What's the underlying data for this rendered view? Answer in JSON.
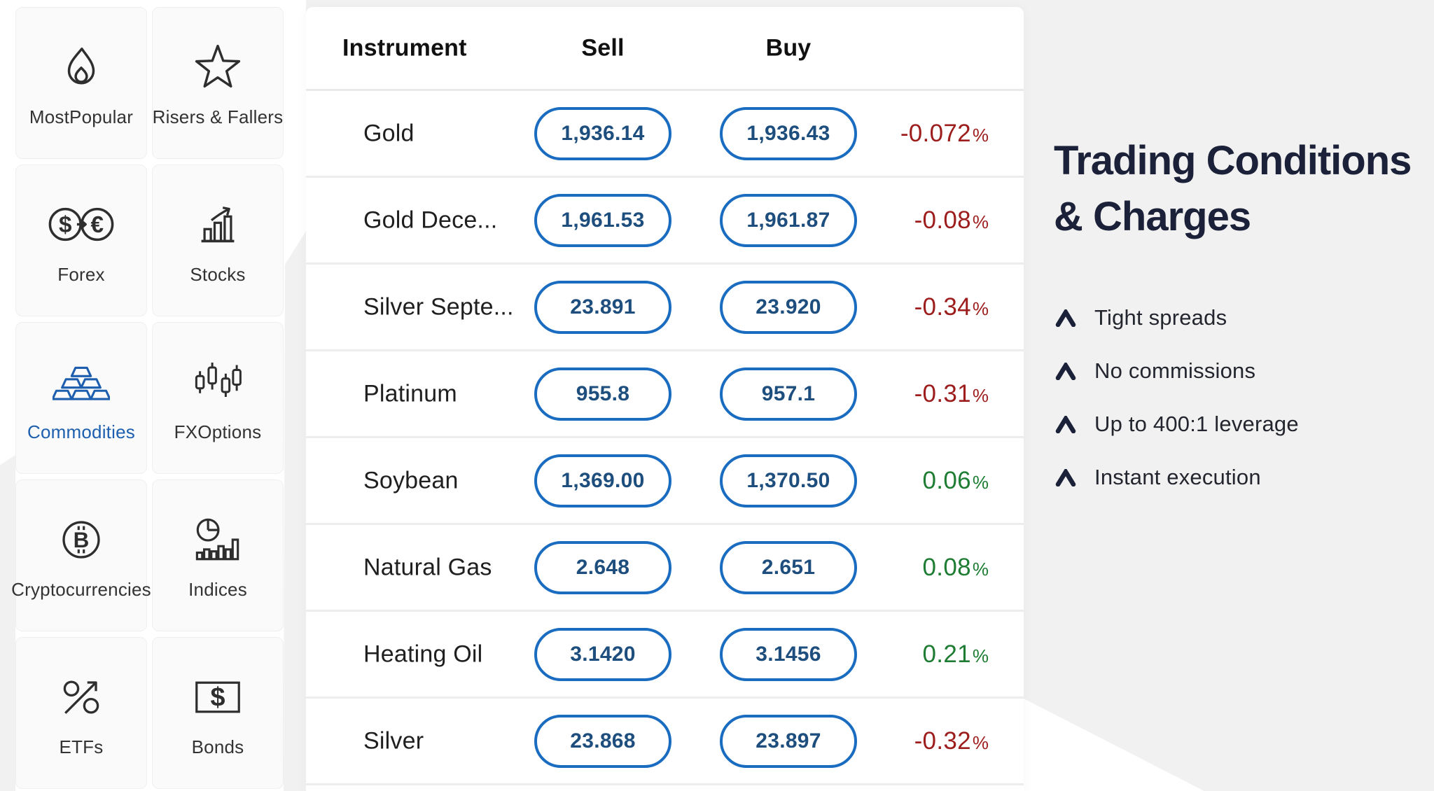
{
  "colors": {
    "accent_blue": "#1a6cc0",
    "pill_text": "#1d4e7d",
    "negative_red": "#9d1d1d",
    "positive_green": "#1e7c33",
    "heading_navy": "#1b2138",
    "selected_blue": "#1d5fae"
  },
  "sidebar": {
    "items": [
      {
        "label": "MostPopular",
        "icon": "flame-icon",
        "selected": false
      },
      {
        "label": "Risers & Fallers",
        "icon": "star-icon",
        "selected": false
      },
      {
        "label": "Forex",
        "icon": "currency-exchange-icon",
        "selected": false
      },
      {
        "label": "Stocks",
        "icon": "bar-chart-arrow-icon",
        "selected": false
      },
      {
        "label": "Commodities",
        "icon": "gold-bars-icon",
        "selected": true
      },
      {
        "label": "FXOptions",
        "icon": "candlesticks-icon",
        "selected": false
      },
      {
        "label": "Cryptocurrencies",
        "icon": "bitcoin-icon",
        "selected": false
      },
      {
        "label": "Indices",
        "icon": "pie-bars-icon",
        "selected": false
      },
      {
        "label": "ETFs",
        "icon": "percent-arrow-icon",
        "selected": false
      },
      {
        "label": "Bonds",
        "icon": "dollar-note-icon",
        "selected": false
      }
    ]
  },
  "table": {
    "headers": {
      "instrument": "Instrument",
      "sell": "Sell",
      "buy": "Buy"
    },
    "percent_suffix": "%",
    "rows": [
      {
        "instrument": "Gold",
        "sell": "1,936.14",
        "buy": "1,936.43",
        "change": "-0.072",
        "direction": "down"
      },
      {
        "instrument": "Gold Dece...",
        "sell": "1,961.53",
        "buy": "1,961.87",
        "change": "-0.08",
        "direction": "down"
      },
      {
        "instrument": "Silver Septe...",
        "sell": "23.891",
        "buy": "23.920",
        "change": "-0.34",
        "direction": "down"
      },
      {
        "instrument": "Platinum",
        "sell": "955.8",
        "buy": "957.1",
        "change": "-0.31",
        "direction": "down"
      },
      {
        "instrument": "Soybean",
        "sell": "1,369.00",
        "buy": "1,370.50",
        "change": "0.06",
        "direction": "up"
      },
      {
        "instrument": "Natural Gas",
        "sell": "2.648",
        "buy": "2.651",
        "change": "0.08",
        "direction": "up"
      },
      {
        "instrument": "Heating Oil",
        "sell": "3.1420",
        "buy": "3.1456",
        "change": "0.21",
        "direction": "up"
      },
      {
        "instrument": "Silver",
        "sell": "23.868",
        "buy": "23.897",
        "change": "-0.32",
        "direction": "down"
      }
    ]
  },
  "panel": {
    "title_line1": "Trading Conditions",
    "title_line2": "& Charges",
    "bullets": [
      "Tight spreads",
      "No commissions",
      "Up to 400:1 leverage",
      "Instant execution"
    ]
  }
}
